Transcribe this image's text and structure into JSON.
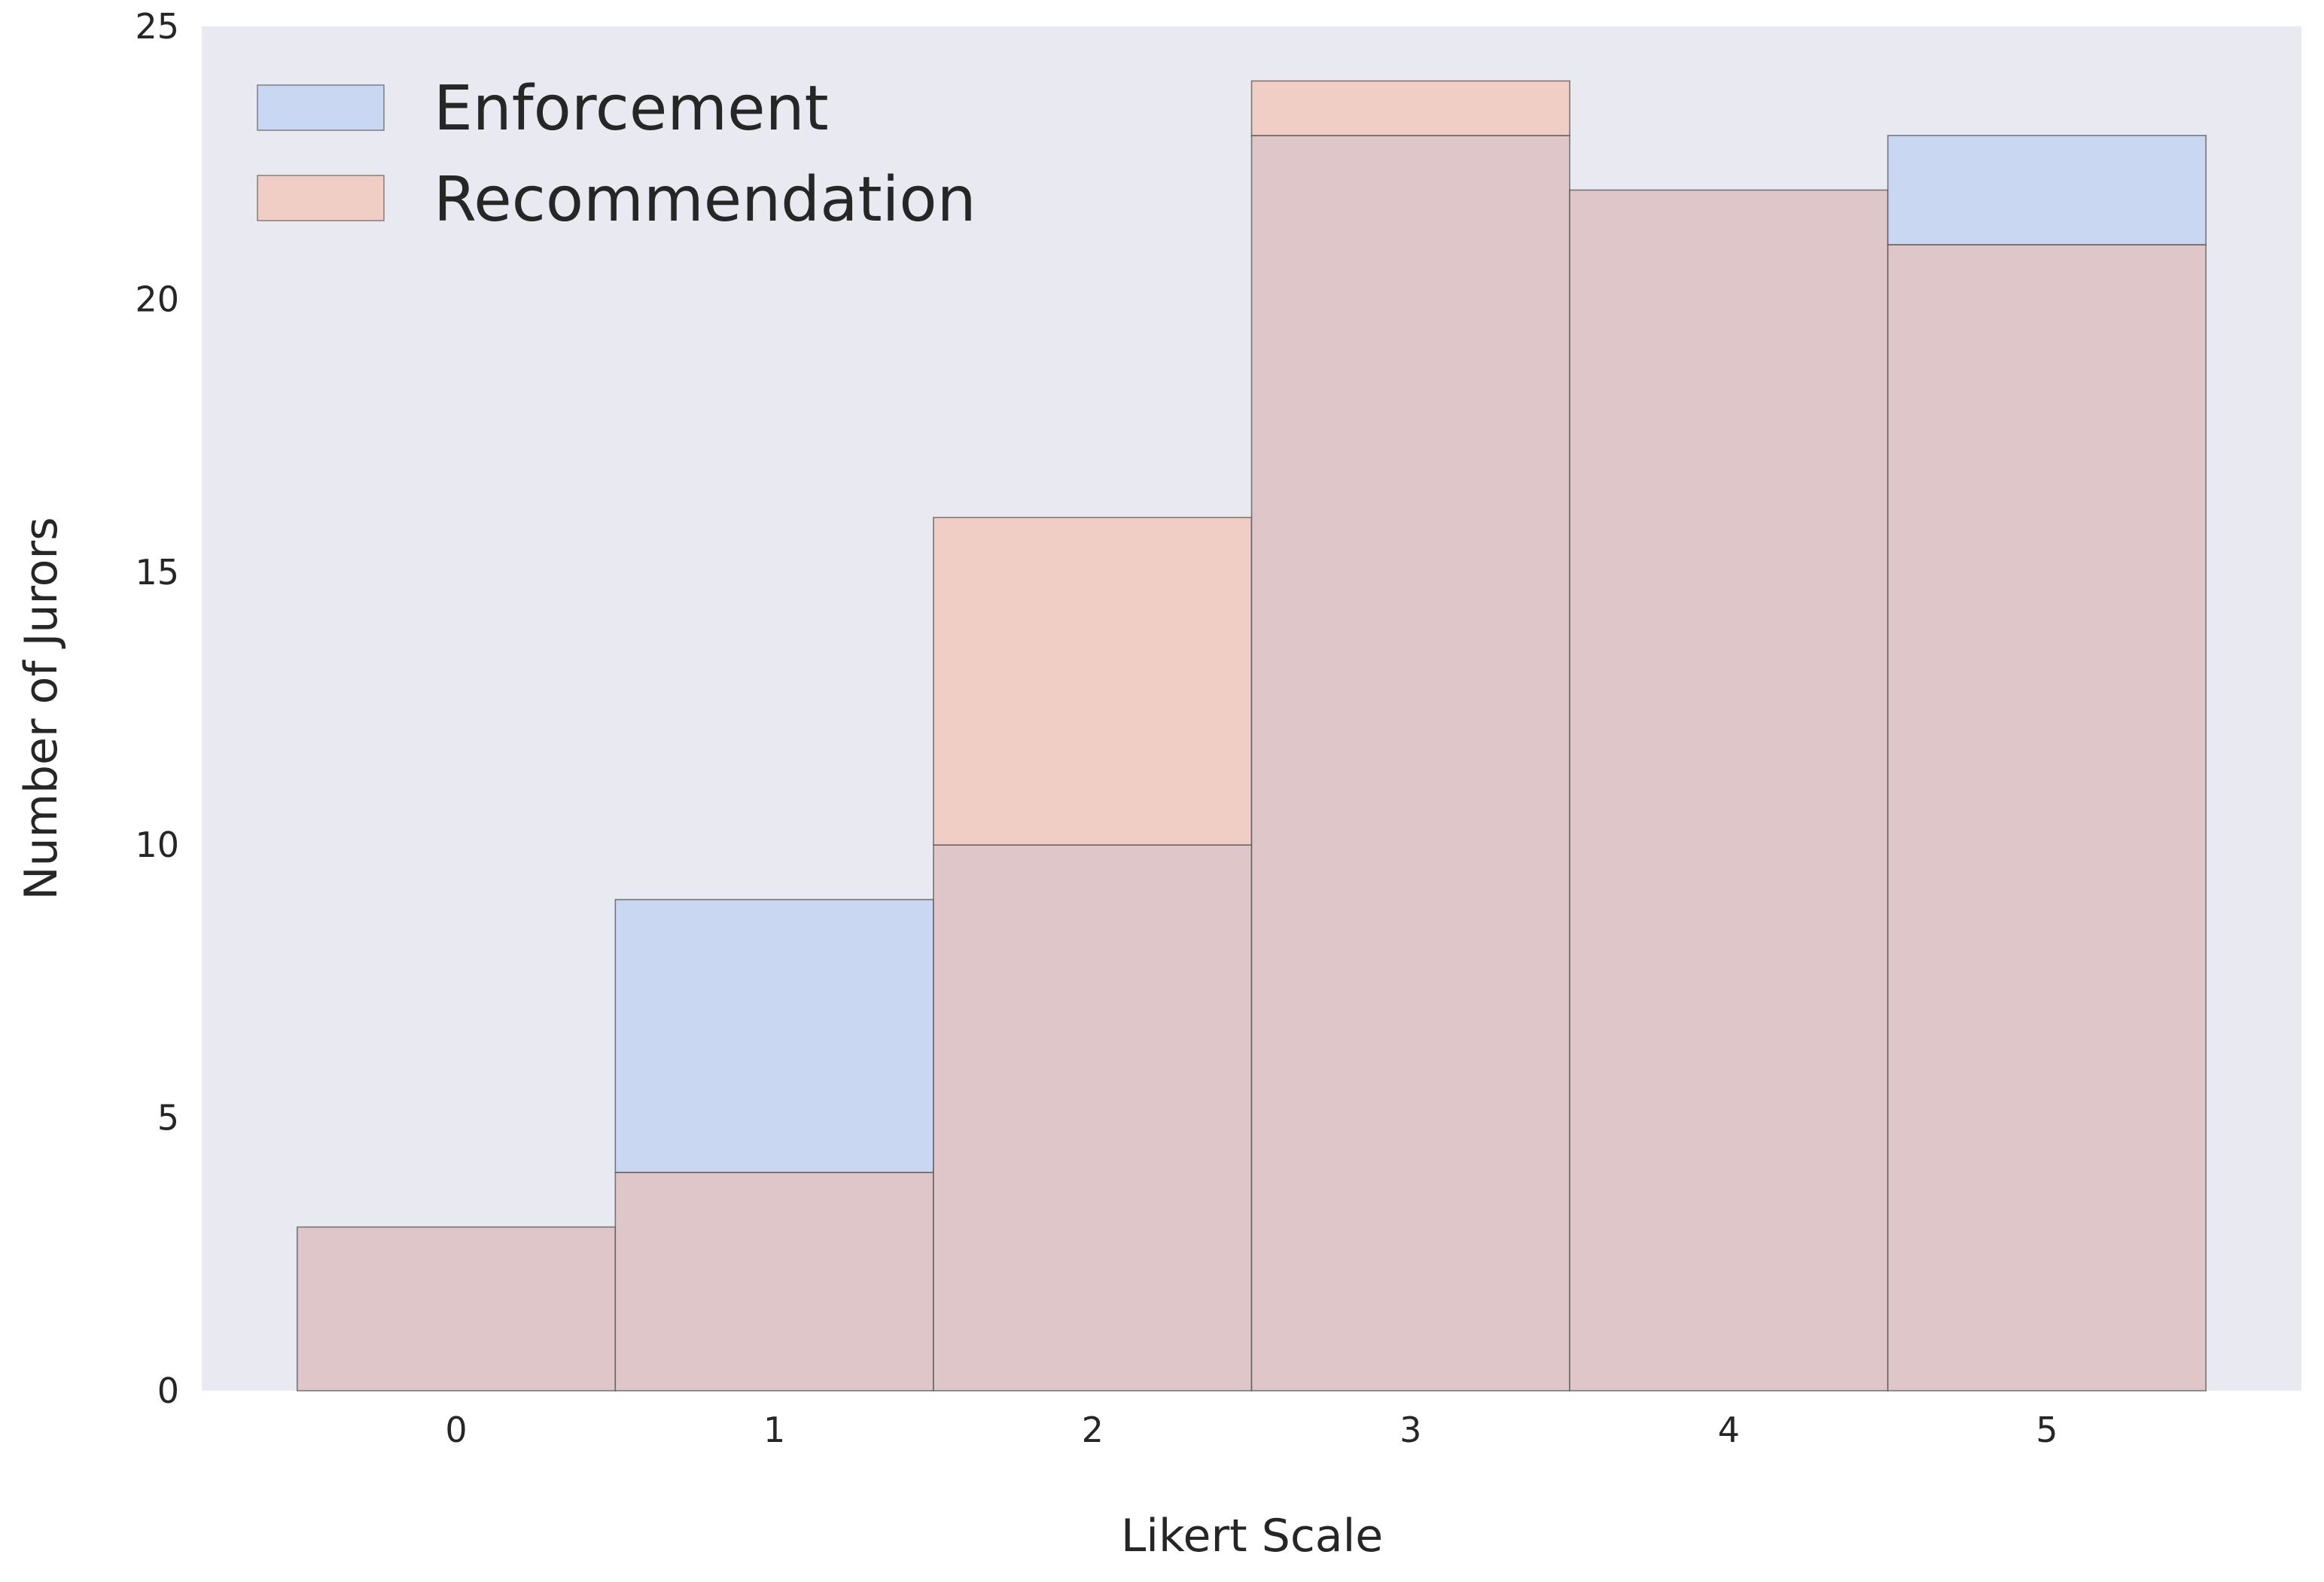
{
  "chart_data": {
    "type": "bar",
    "title": "",
    "xlabel": "Likert Scale",
    "ylabel": "Number of Jurors",
    "categories": [
      "0",
      "1",
      "2",
      "3",
      "4",
      "5"
    ],
    "series": [
      {
        "name": "Enforcement",
        "values": [
          3,
          9,
          10,
          23,
          22,
          23
        ],
        "color": "#c9d7f3"
      },
      {
        "name": "Recommendation",
        "values": [
          3,
          4,
          16,
          24,
          22,
          21
        ],
        "color": "#f0cdc5"
      }
    ],
    "overlap_color": "#dfc6c9",
    "ylim": [
      0,
      25
    ],
    "yticks": [
      "0",
      "5",
      "10",
      "15",
      "20",
      "25"
    ],
    "grid": false,
    "legend_position": "top-left",
    "colors": {
      "plot_background": "#e9e9f1",
      "edge": "#4a4a4a"
    }
  }
}
